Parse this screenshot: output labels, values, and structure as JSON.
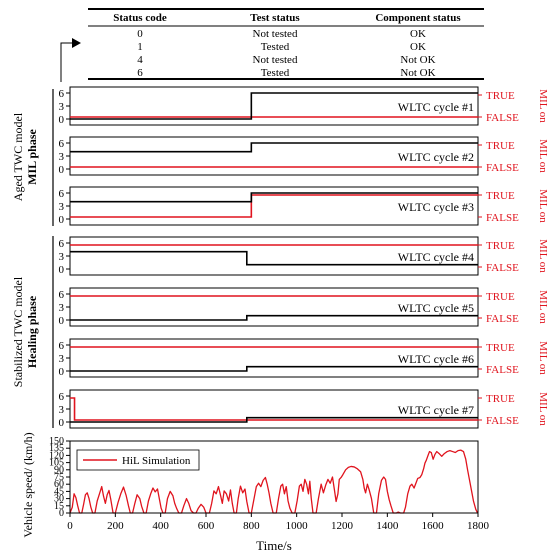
{
  "status_table": {
    "headers": [
      "Status code",
      "Test status",
      "Component status"
    ],
    "rows": [
      [
        "0",
        "Not tested",
        "OK"
      ],
      [
        "1",
        "Tested",
        "OK"
      ],
      [
        "4",
        "Not tested",
        "Not OK"
      ],
      [
        "6",
        "Tested",
        "Not OK"
      ]
    ]
  },
  "group_labels": {
    "mil": {
      "line1": "Aged TWC model",
      "line2": "MIL phase"
    },
    "healing": {
      "line1": "Stabilized TWC model",
      "line2": "Healing phase"
    }
  },
  "mil_labels": {
    "true": "TRUE",
    "false": "FALSE",
    "axis": "MIL on"
  },
  "colors": {
    "status": "#000000",
    "mil": "#e0141e",
    "speed": "#e0141e"
  },
  "chart_data": [
    {
      "type": "line",
      "title": "WLTC cycle #1",
      "yticks": [
        0,
        3,
        6
      ],
      "ylim": [
        0,
        6
      ],
      "status": [
        [
          0,
          0
        ],
        [
          800,
          0
        ],
        [
          800,
          6
        ],
        [
          1800,
          6
        ]
      ],
      "mil": [
        [
          0,
          0
        ],
        [
          800,
          0
        ],
        [
          800,
          0
        ],
        [
          1800,
          0
        ]
      ]
    },
    {
      "type": "line",
      "title": "WLTC cycle #2",
      "yticks": [
        0,
        3,
        6
      ],
      "ylim": [
        0,
        6
      ],
      "status": [
        [
          0,
          4
        ],
        [
          800,
          4
        ],
        [
          800,
          6
        ],
        [
          1800,
          6
        ]
      ],
      "mil": [
        [
          0,
          0
        ],
        [
          1800,
          0
        ]
      ]
    },
    {
      "type": "line",
      "title": "WLTC cycle #3",
      "yticks": [
        0,
        3,
        6
      ],
      "ylim": [
        0,
        6
      ],
      "status": [
        [
          0,
          4
        ],
        [
          800,
          4
        ],
        [
          800,
          6
        ],
        [
          1800,
          6
        ]
      ],
      "mil": [
        [
          0,
          0
        ],
        [
          800,
          0
        ],
        [
          800,
          1
        ],
        [
          1800,
          1
        ]
      ]
    },
    {
      "type": "line",
      "title": "WLTC cycle #4",
      "yticks": [
        0,
        3,
        6
      ],
      "ylim": [
        0,
        6
      ],
      "status": [
        [
          0,
          4
        ],
        [
          780,
          4
        ],
        [
          780,
          1
        ],
        [
          1800,
          1
        ]
      ],
      "mil": [
        [
          0,
          1
        ],
        [
          1800,
          1
        ]
      ]
    },
    {
      "type": "line",
      "title": "WLTC cycle #5",
      "yticks": [
        0,
        3,
        6
      ],
      "ylim": [
        0,
        6
      ],
      "status": [
        [
          0,
          0
        ],
        [
          780,
          0
        ],
        [
          780,
          1
        ],
        [
          1800,
          1
        ]
      ],
      "mil": [
        [
          0,
          1
        ],
        [
          1800,
          1
        ]
      ]
    },
    {
      "type": "line",
      "title": "WLTC cycle #6",
      "yticks": [
        0,
        3,
        6
      ],
      "ylim": [
        0,
        6
      ],
      "status": [
        [
          0,
          0
        ],
        [
          780,
          0
        ],
        [
          780,
          1
        ],
        [
          1800,
          1
        ]
      ],
      "mil": [
        [
          0,
          1
        ],
        [
          1800,
          1
        ]
      ]
    },
    {
      "type": "line",
      "title": "WLTC cycle #7",
      "yticks": [
        0,
        3,
        6
      ],
      "ylim": [
        0,
        6
      ],
      "status": [
        [
          0,
          0
        ],
        [
          780,
          0
        ],
        [
          780,
          1
        ],
        [
          1800,
          1
        ]
      ],
      "mil": [
        [
          0,
          1
        ],
        [
          20,
          1
        ],
        [
          20,
          0
        ],
        [
          780,
          0
        ],
        [
          1800,
          0
        ]
      ]
    },
    {
      "type": "line",
      "ylabel": "Vehicle speed/ (km/h)",
      "xlabel": "Time/s",
      "xlim": [
        0,
        1800
      ],
      "ylim": [
        0,
        150
      ],
      "xticks": [
        0,
        200,
        400,
        600,
        800,
        1000,
        1200,
        1400,
        1600,
        1800
      ],
      "yticks": [
        0,
        15,
        30,
        45,
        60,
        75,
        90,
        105,
        120,
        135,
        150
      ],
      "legend": "top-left",
      "series": [
        {
          "name": "HiL Simulation",
          "points": [
            [
              0,
              0
            ],
            [
              10,
              12
            ],
            [
              18,
              40
            ],
            [
              26,
              32
            ],
            [
              34,
              15
            ],
            [
              42,
              0
            ],
            [
              52,
              0
            ],
            [
              60,
              18
            ],
            [
              68,
              38
            ],
            [
              76,
              42
            ],
            [
              84,
              30
            ],
            [
              92,
              12
            ],
            [
              100,
              0
            ],
            [
              110,
              0
            ],
            [
              120,
              25
            ],
            [
              130,
              40
            ],
            [
              140,
              55
            ],
            [
              148,
              35
            ],
            [
              156,
              20
            ],
            [
              164,
              38
            ],
            [
              172,
              47
            ],
            [
              180,
              28
            ],
            [
              190,
              0
            ],
            [
              200,
              0
            ],
            [
              212,
              22
            ],
            [
              224,
              40
            ],
            [
              236,
              54
            ],
            [
              248,
              36
            ],
            [
              258,
              15
            ],
            [
              266,
              0
            ],
            [
              276,
              0
            ],
            [
              286,
              20
            ],
            [
              296,
              38
            ],
            [
              308,
              30
            ],
            [
              316,
              14
            ],
            [
              326,
              0
            ],
            [
              336,
              0
            ],
            [
              346,
              25
            ],
            [
              356,
              40
            ],
            [
              366,
              52
            ],
            [
              376,
              44
            ],
            [
              386,
              50
            ],
            [
              394,
              30
            ],
            [
              402,
              10
            ],
            [
              410,
              0
            ],
            [
              420,
              0
            ],
            [
              430,
              30
            ],
            [
              442,
              45
            ],
            [
              454,
              36
            ],
            [
              462,
              20
            ],
            [
              470,
              10
            ],
            [
              480,
              0
            ],
            [
              492,
              0
            ],
            [
              502,
              15
            ],
            [
              514,
              30
            ],
            [
              524,
              20
            ],
            [
              534,
              5
            ],
            [
              545,
              0
            ],
            [
              556,
              0
            ],
            [
              566,
              10
            ],
            [
              578,
              18
            ],
            [
              590,
              12
            ],
            [
              600,
              0
            ],
            [
              615,
              0
            ],
            [
              625,
              20
            ],
            [
              635,
              46
            ],
            [
              645,
              40
            ],
            [
              655,
              55
            ],
            [
              665,
              35
            ],
            [
              672,
              20
            ],
            [
              680,
              46
            ],
            [
              690,
              40
            ],
            [
              700,
              25
            ],
            [
              708,
              48
            ],
            [
              716,
              20
            ],
            [
              724,
              0
            ],
            [
              734,
              0
            ],
            [
              742,
              30
            ],
            [
              752,
              56
            ],
            [
              762,
              42
            ],
            [
              772,
              50
            ],
            [
              780,
              24
            ],
            [
              790,
              0
            ],
            [
              800,
              0
            ],
            [
              812,
              30
            ],
            [
              822,
              55
            ],
            [
              832,
              62
            ],
            [
              842,
              55
            ],
            [
              852,
              68
            ],
            [
              862,
              74
            ],
            [
              870,
              60
            ],
            [
              878,
              42
            ],
            [
              886,
              20
            ],
            [
              896,
              0
            ],
            [
              910,
              0
            ],
            [
              920,
              30
            ],
            [
              930,
              56
            ],
            [
              938,
              60
            ],
            [
              946,
              40
            ],
            [
              954,
              55
            ],
            [
              962,
              25
            ],
            [
              970,
              10
            ],
            [
              980,
              0
            ],
            [
              992,
              0
            ],
            [
              1002,
              25
            ],
            [
              1012,
              56
            ],
            [
              1020,
              60
            ],
            [
              1028,
              45
            ],
            [
              1036,
              70
            ],
            [
              1044,
              60
            ],
            [
              1052,
              40
            ],
            [
              1058,
              66
            ],
            [
              1064,
              32
            ],
            [
              1072,
              0
            ],
            [
              1086,
              0
            ],
            [
              1096,
              30
            ],
            [
              1108,
              60
            ],
            [
              1118,
              42
            ],
            [
              1128,
              58
            ],
            [
              1138,
              70
            ],
            [
              1148,
              62
            ],
            [
              1158,
              75
            ],
            [
              1166,
              50
            ],
            [
              1174,
              24
            ],
            [
              1182,
              40
            ],
            [
              1188,
              70
            ],
            [
              1196,
              74
            ],
            [
              1204,
              80
            ],
            [
              1216,
              90
            ],
            [
              1228,
              95
            ],
            [
              1240,
              97
            ],
            [
              1254,
              96
            ],
            [
              1268,
              92
            ],
            [
              1282,
              86
            ],
            [
              1292,
              70
            ],
            [
              1298,
              52
            ],
            [
              1304,
              42
            ],
            [
              1312,
              60
            ],
            [
              1320,
              48
            ],
            [
              1330,
              30
            ],
            [
              1340,
              0
            ],
            [
              1352,
              0
            ],
            [
              1362,
              40
            ],
            [
              1374,
              68
            ],
            [
              1384,
              75
            ],
            [
              1392,
              70
            ],
            [
              1400,
              45
            ],
            [
              1408,
              28
            ],
            [
              1416,
              15
            ],
            [
              1426,
              0
            ],
            [
              1440,
              0
            ],
            [
              1448,
              2
            ],
            [
              1458,
              0
            ],
            [
              1472,
              0
            ],
            [
              1480,
              12
            ],
            [
              1490,
              40
            ],
            [
              1500,
              56
            ],
            [
              1508,
              60
            ],
            [
              1518,
              52
            ],
            [
              1526,
              62
            ],
            [
              1534,
              72
            ],
            [
              1544,
              74
            ],
            [
              1552,
              80
            ],
            [
              1560,
              92
            ],
            [
              1566,
              104
            ],
            [
              1572,
              110
            ],
            [
              1578,
              118
            ],
            [
              1586,
              128
            ],
            [
              1594,
              126
            ],
            [
              1602,
              112
            ],
            [
              1610,
              122
            ],
            [
              1618,
              128
            ],
            [
              1628,
              124
            ],
            [
              1640,
              118
            ],
            [
              1652,
              124
            ],
            [
              1664,
              128
            ],
            [
              1676,
              130
            ],
            [
              1688,
              128
            ],
            [
              1700,
              126
            ],
            [
              1712,
              130
            ],
            [
              1724,
              131
            ],
            [
              1736,
              128
            ],
            [
              1746,
              112
            ],
            [
              1754,
              90
            ],
            [
              1762,
              70
            ],
            [
              1772,
              45
            ],
            [
              1780,
              25
            ],
            [
              1790,
              8
            ],
            [
              1798,
              0
            ]
          ]
        }
      ]
    }
  ]
}
